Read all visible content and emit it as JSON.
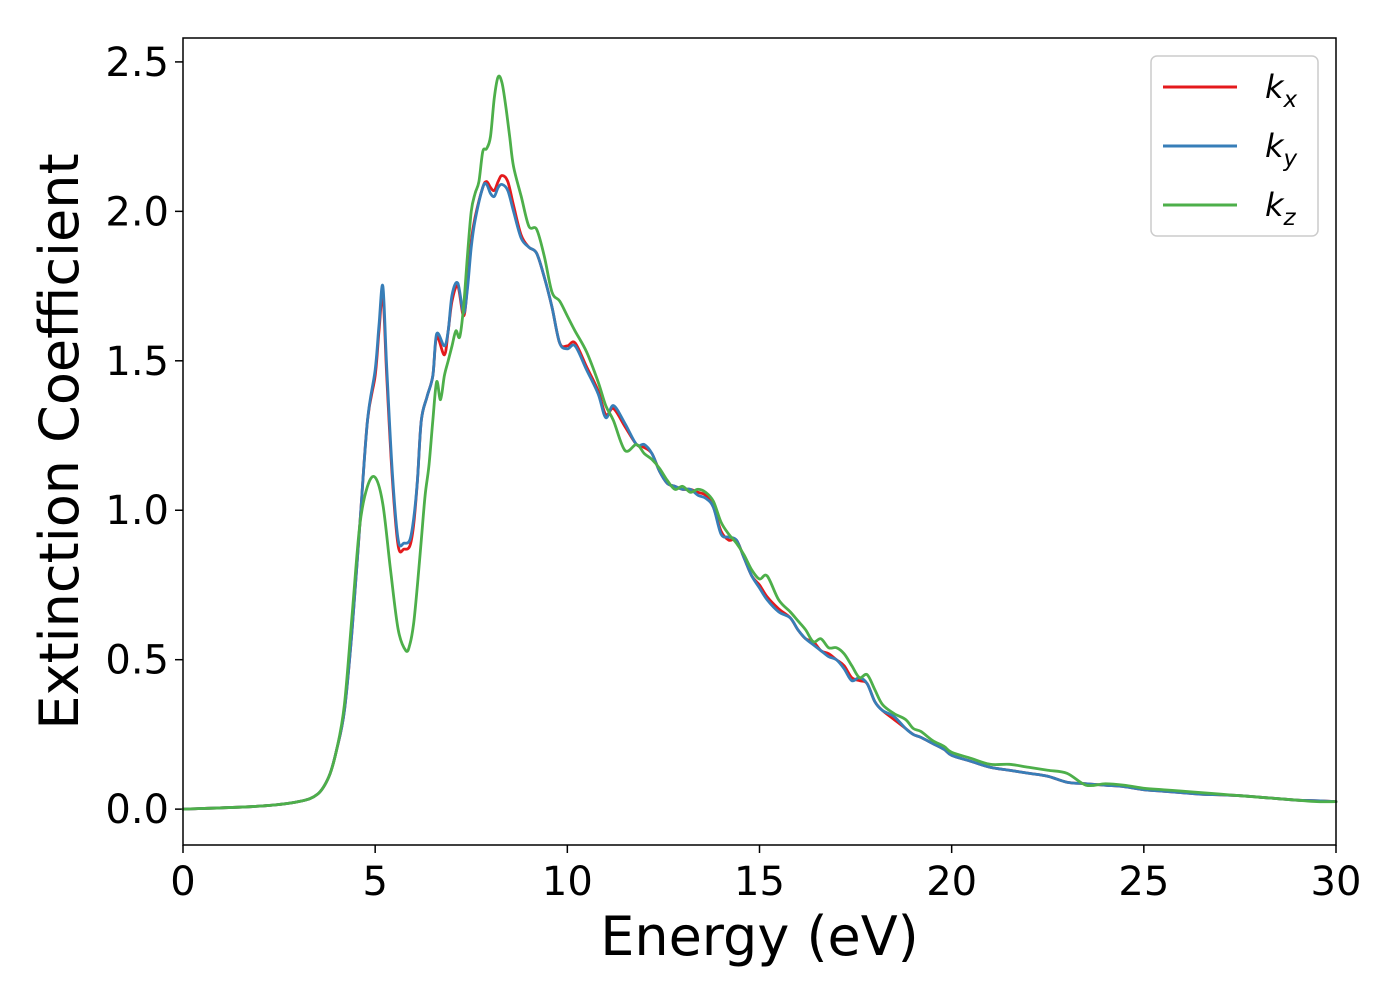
{
  "chart_data": {
    "type": "line",
    "xlabel": "Energy (eV)",
    "ylabel": "Extinction Coefficient",
    "xlim": [
      0,
      30
    ],
    "ylim": [
      -0.12,
      2.58
    ],
    "xticks": [
      0,
      5,
      10,
      15,
      20,
      25,
      30
    ],
    "xtick_labels": [
      "0",
      "5",
      "10",
      "15",
      "20",
      "25",
      "30"
    ],
    "yticks": [
      0.0,
      0.5,
      1.0,
      1.5,
      2.0,
      2.5
    ],
    "ytick_labels": [
      "0.0",
      "0.5",
      "1.0",
      "1.5",
      "2.0",
      "2.5"
    ],
    "grid": false,
    "legend_position": "top-right",
    "series": [
      {
        "name": "k_x",
        "label_base": "k",
        "label_sub": "x",
        "color": "#e41a1c",
        "x": [
          0,
          2,
          3,
          3.5,
          3.8,
          4.0,
          4.2,
          4.4,
          4.6,
          4.8,
          5.0,
          5.1,
          5.2,
          5.3,
          5.45,
          5.6,
          5.75,
          5.9,
          6.0,
          6.1,
          6.2,
          6.35,
          6.5,
          6.6,
          6.8,
          6.9,
          7.0,
          7.15,
          7.3,
          7.4,
          7.5,
          7.6,
          7.8,
          7.9,
          8.0,
          8.1,
          8.2,
          8.3,
          8.45,
          8.6,
          8.8,
          9.0,
          9.2,
          9.4,
          9.6,
          9.8,
          10.0,
          10.2,
          10.5,
          10.8,
          11.0,
          11.2,
          11.5,
          11.8,
          12.0,
          12.2,
          12.4,
          12.6,
          12.8,
          13.0,
          13.2,
          13.4,
          13.6,
          13.8,
          14.0,
          14.2,
          14.4,
          14.6,
          14.8,
          15.0,
          15.2,
          15.5,
          15.8,
          16.0,
          16.2,
          16.4,
          16.6,
          16.8,
          17.0,
          17.2,
          17.4,
          17.6,
          17.8,
          18.0,
          18.2,
          18.5,
          18.8,
          19.0,
          19.2,
          19.5,
          19.8,
          20.0,
          20.5,
          21.0,
          21.5,
          22.0,
          22.5,
          23.0,
          23.5,
          24.0,
          24.5,
          25.0,
          25.5,
          26.0,
          26.5,
          27.0,
          27.5,
          28.0,
          28.5,
          29.0,
          29.5,
          30.0
        ],
        "y": [
          0.0,
          0.01,
          0.025,
          0.05,
          0.11,
          0.2,
          0.33,
          0.6,
          0.95,
          1.3,
          1.45,
          1.6,
          1.72,
          1.45,
          1.1,
          0.88,
          0.87,
          0.88,
          0.95,
          1.1,
          1.3,
          1.38,
          1.45,
          1.58,
          1.52,
          1.6,
          1.7,
          1.75,
          1.65,
          1.75,
          1.9,
          1.98,
          2.08,
          2.1,
          2.08,
          2.07,
          2.1,
          2.12,
          2.1,
          2.02,
          1.92,
          1.88,
          1.86,
          1.78,
          1.68,
          1.56,
          1.55,
          1.56,
          1.48,
          1.4,
          1.32,
          1.34,
          1.28,
          1.22,
          1.21,
          1.19,
          1.13,
          1.09,
          1.08,
          1.07,
          1.07,
          1.06,
          1.05,
          1.01,
          0.93,
          0.9,
          0.9,
          0.84,
          0.78,
          0.75,
          0.71,
          0.67,
          0.64,
          0.6,
          0.57,
          0.56,
          0.53,
          0.52,
          0.5,
          0.48,
          0.44,
          0.43,
          0.42,
          0.36,
          0.33,
          0.3,
          0.27,
          0.25,
          0.24,
          0.22,
          0.2,
          0.18,
          0.16,
          0.14,
          0.13,
          0.12,
          0.11,
          0.09,
          0.085,
          0.08,
          0.075,
          0.065,
          0.06,
          0.055,
          0.05,
          0.048,
          0.045,
          0.04,
          0.035,
          0.03,
          0.028,
          0.025
        ]
      },
      {
        "name": "k_y",
        "label_base": "k",
        "label_sub": "y",
        "color": "#377eb8",
        "x": [
          0,
          2,
          3,
          3.5,
          3.8,
          4.0,
          4.2,
          4.4,
          4.6,
          4.8,
          5.0,
          5.1,
          5.2,
          5.3,
          5.45,
          5.6,
          5.75,
          5.9,
          6.0,
          6.1,
          6.2,
          6.35,
          6.5,
          6.6,
          6.8,
          6.9,
          7.0,
          7.15,
          7.3,
          7.4,
          7.5,
          7.6,
          7.8,
          7.9,
          8.0,
          8.1,
          8.2,
          8.3,
          8.45,
          8.6,
          8.8,
          9.0,
          9.2,
          9.4,
          9.6,
          9.8,
          10.0,
          10.2,
          10.5,
          10.8,
          11.0,
          11.2,
          11.5,
          11.8,
          12.0,
          12.2,
          12.4,
          12.6,
          12.8,
          13.0,
          13.2,
          13.4,
          13.6,
          13.8,
          14.0,
          14.2,
          14.4,
          14.6,
          14.8,
          15.0,
          15.2,
          15.5,
          15.8,
          16.0,
          16.2,
          16.4,
          16.6,
          16.8,
          17.0,
          17.2,
          17.4,
          17.6,
          17.8,
          18.0,
          18.2,
          18.5,
          18.8,
          19.0,
          19.2,
          19.5,
          19.8,
          20.0,
          20.5,
          21.0,
          21.5,
          22.0,
          22.5,
          23.0,
          23.5,
          24.0,
          24.5,
          25.0,
          25.5,
          26.0,
          26.5,
          27.0,
          27.5,
          28.0,
          28.5,
          29.0,
          29.5,
          30.0
        ],
        "y": [
          0.0,
          0.01,
          0.025,
          0.05,
          0.11,
          0.2,
          0.33,
          0.6,
          0.95,
          1.3,
          1.47,
          1.62,
          1.75,
          1.48,
          1.12,
          0.9,
          0.89,
          0.9,
          0.97,
          1.1,
          1.3,
          1.38,
          1.45,
          1.59,
          1.55,
          1.6,
          1.72,
          1.76,
          1.66,
          1.74,
          1.88,
          1.97,
          2.08,
          2.09,
          2.06,
          2.05,
          2.08,
          2.09,
          2.07,
          2.0,
          1.91,
          1.88,
          1.86,
          1.78,
          1.68,
          1.56,
          1.54,
          1.55,
          1.47,
          1.39,
          1.31,
          1.35,
          1.29,
          1.22,
          1.22,
          1.19,
          1.13,
          1.09,
          1.08,
          1.07,
          1.07,
          1.05,
          1.04,
          1.01,
          0.92,
          0.91,
          0.9,
          0.84,
          0.78,
          0.74,
          0.7,
          0.66,
          0.64,
          0.6,
          0.57,
          0.55,
          0.53,
          0.51,
          0.5,
          0.47,
          0.43,
          0.44,
          0.42,
          0.36,
          0.33,
          0.31,
          0.27,
          0.25,
          0.24,
          0.22,
          0.2,
          0.18,
          0.16,
          0.14,
          0.13,
          0.12,
          0.11,
          0.09,
          0.085,
          0.08,
          0.075,
          0.065,
          0.06,
          0.055,
          0.05,
          0.048,
          0.045,
          0.04,
          0.035,
          0.03,
          0.028,
          0.025
        ]
      },
      {
        "name": "k_z",
        "label_base": "k",
        "label_sub": "z",
        "color": "#4daf4a",
        "x": [
          0,
          2,
          3,
          3.5,
          3.8,
          4.0,
          4.2,
          4.4,
          4.6,
          4.8,
          5.0,
          5.2,
          5.4,
          5.6,
          5.8,
          5.9,
          6.0,
          6.1,
          6.2,
          6.3,
          6.4,
          6.5,
          6.6,
          6.7,
          6.8,
          6.9,
          7.0,
          7.1,
          7.2,
          7.3,
          7.4,
          7.5,
          7.6,
          7.7,
          7.8,
          7.9,
          8.0,
          8.1,
          8.2,
          8.3,
          8.4,
          8.5,
          8.6,
          8.8,
          9.0,
          9.2,
          9.4,
          9.6,
          9.8,
          10.0,
          10.2,
          10.5,
          10.8,
          11.0,
          11.2,
          11.5,
          11.8,
          12.0,
          12.2,
          12.4,
          12.6,
          12.8,
          13.0,
          13.2,
          13.4,
          13.6,
          13.8,
          14.0,
          14.2,
          14.4,
          14.6,
          14.8,
          15.0,
          15.2,
          15.5,
          15.8,
          16.0,
          16.2,
          16.4,
          16.6,
          16.8,
          17.0,
          17.2,
          17.4,
          17.6,
          17.8,
          18.0,
          18.2,
          18.5,
          18.8,
          19.0,
          19.2,
          19.5,
          19.8,
          20.0,
          20.5,
          21.0,
          21.5,
          22.0,
          22.5,
          23.0,
          23.5,
          24.0,
          24.5,
          25.0,
          25.5,
          26.0,
          26.5,
          27.0,
          27.5,
          28.0,
          28.5,
          29.0,
          29.5,
          30.0
        ],
        "y": [
          0.0,
          0.01,
          0.025,
          0.05,
          0.11,
          0.2,
          0.35,
          0.65,
          0.95,
          1.08,
          1.11,
          1.02,
          0.8,
          0.6,
          0.53,
          0.55,
          0.62,
          0.75,
          0.9,
          1.05,
          1.15,
          1.3,
          1.43,
          1.37,
          1.45,
          1.5,
          1.55,
          1.6,
          1.58,
          1.68,
          1.85,
          2.0,
          2.06,
          2.1,
          2.2,
          2.21,
          2.25,
          2.38,
          2.45,
          2.43,
          2.35,
          2.25,
          2.15,
          2.05,
          1.95,
          1.94,
          1.85,
          1.73,
          1.7,
          1.65,
          1.6,
          1.53,
          1.43,
          1.35,
          1.3,
          1.2,
          1.22,
          1.19,
          1.17,
          1.14,
          1.1,
          1.07,
          1.08,
          1.06,
          1.07,
          1.06,
          1.03,
          0.96,
          0.92,
          0.89,
          0.85,
          0.8,
          0.77,
          0.78,
          0.7,
          0.66,
          0.63,
          0.6,
          0.56,
          0.57,
          0.54,
          0.54,
          0.52,
          0.48,
          0.44,
          0.45,
          0.4,
          0.35,
          0.32,
          0.3,
          0.27,
          0.26,
          0.23,
          0.21,
          0.19,
          0.17,
          0.15,
          0.15,
          0.14,
          0.13,
          0.12,
          0.08,
          0.085,
          0.08,
          0.07,
          0.065,
          0.06,
          0.055,
          0.05,
          0.045,
          0.04,
          0.035,
          0.03,
          0.025,
          0.025
        ]
      }
    ]
  }
}
